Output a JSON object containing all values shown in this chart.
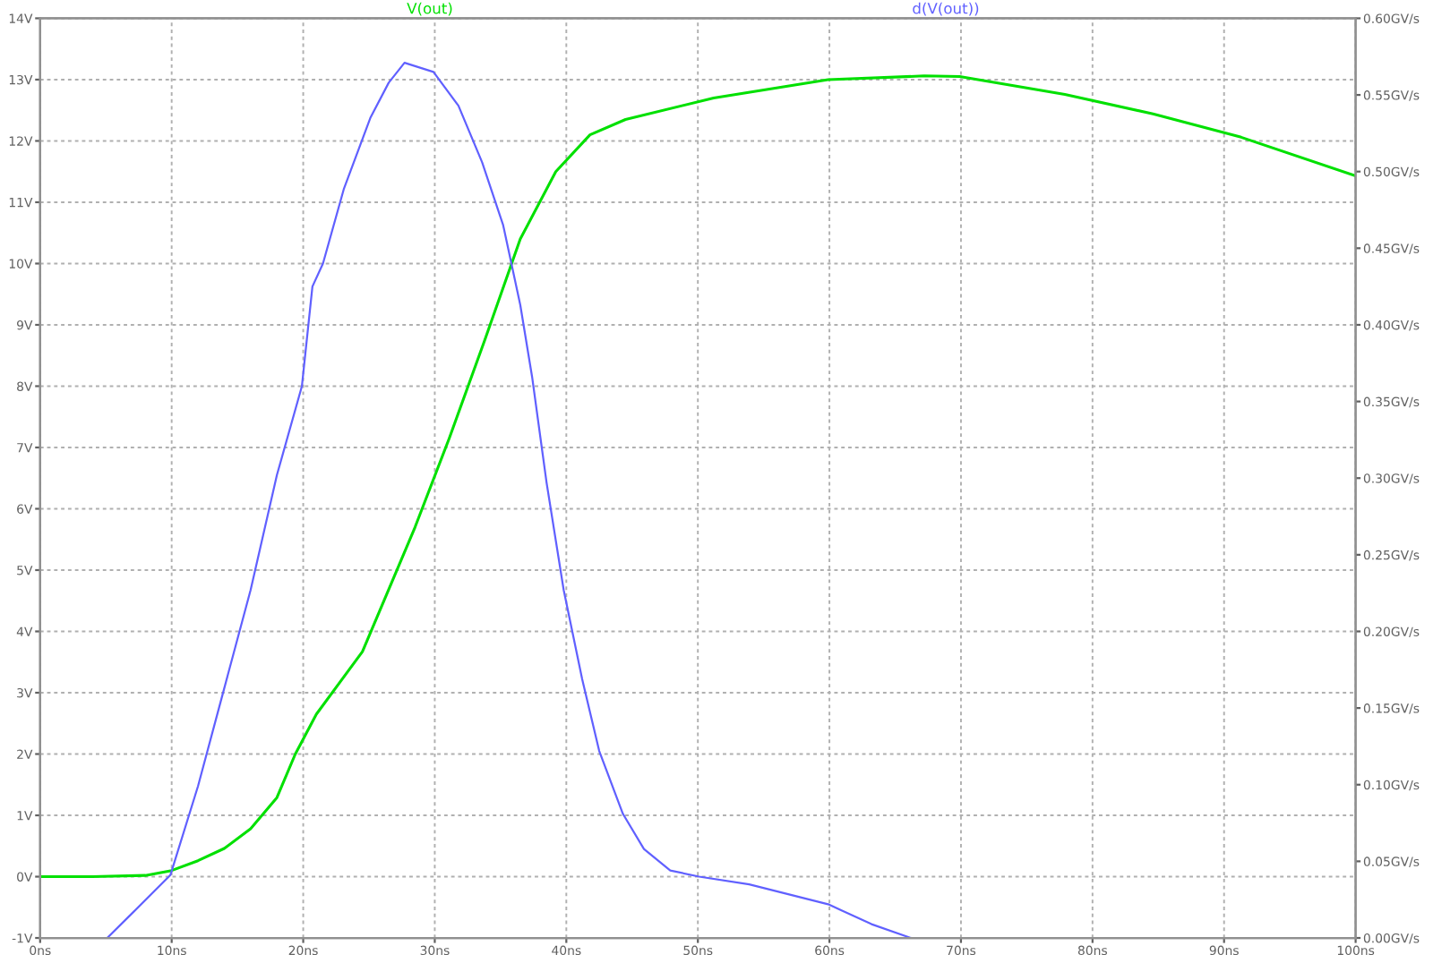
{
  "chart_data": {
    "type": "line",
    "xlim": [
      0,
      100
    ],
    "xticks": [
      {
        "value": 0,
        "label": "0ns"
      },
      {
        "value": 10,
        "label": "10ns"
      },
      {
        "value": 20,
        "label": "20ns"
      },
      {
        "value": 30,
        "label": "30ns"
      },
      {
        "value": 40,
        "label": "40ns"
      },
      {
        "value": 50,
        "label": "50ns"
      },
      {
        "value": 60,
        "label": "60ns"
      },
      {
        "value": 70,
        "label": "70ns"
      },
      {
        "value": 80,
        "label": "80ns"
      },
      {
        "value": 90,
        "label": "90ns"
      },
      {
        "value": 100,
        "label": "100ns"
      }
    ],
    "ylim": [
      -1,
      14
    ],
    "yticks": [
      {
        "value": -1,
        "label": "-1V"
      },
      {
        "value": 0,
        "label": "0V"
      },
      {
        "value": 1,
        "label": "1V"
      },
      {
        "value": 2,
        "label": "2V"
      },
      {
        "value": 3,
        "label": "3V"
      },
      {
        "value": 4,
        "label": "4V"
      },
      {
        "value": 5,
        "label": "5V"
      },
      {
        "value": 6,
        "label": "6V"
      },
      {
        "value": 7,
        "label": "7V"
      },
      {
        "value": 8,
        "label": "8V"
      },
      {
        "value": 9,
        "label": "9V"
      },
      {
        "value": 10,
        "label": "10V"
      },
      {
        "value": 11,
        "label": "11V"
      },
      {
        "value": 12,
        "label": "12V"
      },
      {
        "value": 13,
        "label": "13V"
      },
      {
        "value": 14,
        "label": "14V"
      }
    ],
    "y2lim": [
      0,
      0.6
    ],
    "y2ticks": [
      {
        "value": 0,
        "label": "0.00GV/s"
      },
      {
        "value": 0.05,
        "label": "0.05GV/s"
      },
      {
        "value": 0.1,
        "label": "0.10GV/s"
      },
      {
        "value": 0.15,
        "label": "0.15GV/s"
      },
      {
        "value": 0.2,
        "label": "0.20GV/s"
      },
      {
        "value": 0.25,
        "label": "0.25GV/s"
      },
      {
        "value": 0.3,
        "label": "0.30GV/s"
      },
      {
        "value": 0.35,
        "label": "0.35GV/s"
      },
      {
        "value": 0.4,
        "label": "0.40GV/s"
      },
      {
        "value": 0.45,
        "label": "0.45GV/s"
      },
      {
        "value": 0.5,
        "label": "0.50GV/s"
      },
      {
        "value": 0.55,
        "label": "0.55GV/s"
      },
      {
        "value": 0.6,
        "label": "0.60GV/s"
      }
    ],
    "grid": true,
    "series": [
      {
        "name": "V(out)",
        "color": "#00e000",
        "x": [
          0,
          4,
          8,
          10,
          12,
          14,
          16,
          18,
          19.4,
          21,
          24.5,
          28.5,
          31.1,
          33.8,
          36.5,
          39.2,
          41.8,
          44.5,
          51.2,
          59.9,
          67.2,
          69.9,
          77.9,
          84.6,
          91.3,
          100
        ],
        "values": [
          0,
          0,
          0.02,
          0.1,
          0.26,
          0.46,
          0.78,
          1.29,
          2.0,
          2.65,
          3.67,
          5.7,
          7.15,
          8.75,
          10.4,
          11.5,
          12.1,
          12.35,
          12.7,
          13.0,
          13.06,
          13.05,
          12.76,
          12.44,
          12.06,
          11.43
        ]
      },
      {
        "name": "d(V(out))",
        "color": "#6060ff",
        "axis": "y2",
        "x": [
          5.1,
          7.1,
          9.9,
          12,
          14,
          16,
          18,
          19.9,
          20.7,
          21.5,
          23.1,
          25.1,
          26.5,
          27.7,
          29.9,
          31.8,
          33.6,
          35.2,
          36.5,
          37.4,
          38.5,
          39.8,
          41.2,
          42.5,
          44.3,
          45.9,
          47.9,
          50.1,
          53.9,
          59.9,
          63.2,
          66.2
        ],
        "values": [
          0,
          0.017,
          0.041,
          0.099,
          0.163,
          0.227,
          0.302,
          0.36,
          0.425,
          0.44,
          0.489,
          0.535,
          0.558,
          0.571,
          0.565,
          0.543,
          0.506,
          0.465,
          0.413,
          0.366,
          0.297,
          0.227,
          0.169,
          0.122,
          0.081,
          0.058,
          0.044,
          0.04,
          0.035,
          0.022,
          0.009,
          0
        ]
      }
    ]
  }
}
